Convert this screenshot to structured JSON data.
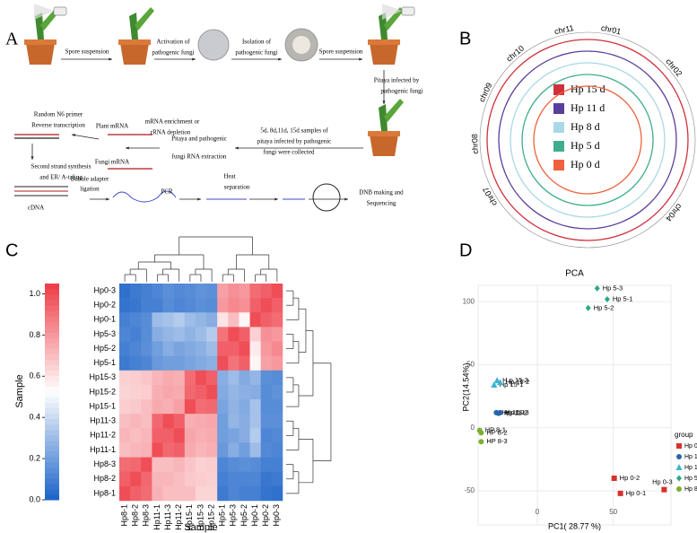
{
  "panel_labels": [
    "A",
    "B",
    "C",
    "D"
  ],
  "workflow": {
    "steps": [
      "Spore suspension",
      "Activation of",
      "pathogenic fungi",
      "Isolation of",
      "pathogenic fungi",
      "Spore suspension",
      "Pitaya infected by",
      "pathogenic fungi",
      "5d, 8d,11d, 15d samples of",
      "pitaya infected by pathogenic",
      "fungi were collected",
      "Pitaya and pathogenic",
      "fungi RNA extraction",
      "mRNA enrichment or",
      "rRNA depletion",
      "Plant mRNA",
      "Fungi mRNA",
      "Random N6 primer",
      "Reverse transcription",
      "Second strand synthesis",
      "and ER/ A-taling",
      "Bubble adapter",
      "ligation",
      "cDNA",
      "PCR",
      "Heat",
      "separation",
      "DNB making and",
      "Sequencing"
    ]
  },
  "circos": {
    "chromosomes": [
      "chr07",
      "chr08",
      "chr09",
      "chr10",
      "chr11",
      "chr01",
      "chr02",
      "chr03",
      "chr04"
    ],
    "tracks": [
      {
        "name": "Hp 15 d",
        "color": "#d0303c"
      },
      {
        "name": "Hp 11 d",
        "color": "#5a3e9c"
      },
      {
        "name": "Hp 8 d",
        "color": "#a9d8e6"
      },
      {
        "name": "Hp 5 d",
        "color": "#3fae8e"
      },
      {
        "name": "Hp 0 d",
        "color": "#f0603c"
      }
    ]
  },
  "chart_data": [
    {
      "type": "heatmap",
      "xlabel": "Sample",
      "ylabel": "Sample",
      "rows": [
        "Hp0-3",
        "Hp0-2",
        "Hp0-1",
        "Hp5-3",
        "Hp5-2",
        "Hp5-1",
        "Hp15-3",
        "Hp15-2",
        "Hp15-1",
        "Hp11-3",
        "Hp11-2",
        "Hp11-1",
        "Hp8-3",
        "Hp8-2",
        "Hp8-1"
      ],
      "columns": [
        "Hp8-1",
        "Hp8-2",
        "Hp8-3",
        "Hp11-1",
        "Hp11-3",
        "Hp11-2",
        "Hp15-1",
        "Hp15-3",
        "Hp15-2",
        "Hp5-1",
        "Hp5-3",
        "Hp5-2",
        "Hp0-1",
        "Hp0-2",
        "Hp0-3"
      ],
      "values": [
        [
          0.05,
          0.08,
          0.1,
          0.12,
          0.15,
          0.13,
          0.14,
          0.16,
          0.15,
          0.78,
          0.82,
          0.8,
          0.92,
          0.95,
          1.0
        ],
        [
          0.06,
          0.07,
          0.1,
          0.1,
          0.14,
          0.12,
          0.13,
          0.15,
          0.14,
          0.8,
          0.84,
          0.82,
          0.95,
          1.0,
          0.95
        ],
        [
          0.1,
          0.12,
          0.14,
          0.3,
          0.32,
          0.35,
          0.3,
          0.28,
          0.25,
          0.6,
          0.7,
          0.55,
          1.0,
          0.95,
          0.92
        ],
        [
          0.12,
          0.1,
          0.14,
          0.25,
          0.28,
          0.3,
          0.27,
          0.3,
          0.35,
          0.9,
          1.0,
          0.95,
          0.65,
          0.82,
          0.8
        ],
        [
          0.1,
          0.12,
          0.15,
          0.2,
          0.25,
          0.22,
          0.24,
          0.26,
          0.3,
          0.95,
          0.95,
          1.0,
          0.58,
          0.8,
          0.84
        ],
        [
          0.08,
          0.1,
          0.12,
          0.18,
          0.2,
          0.2,
          0.22,
          0.24,
          0.26,
          1.0,
          0.9,
          0.95,
          0.55,
          0.78,
          0.8
        ],
        [
          0.65,
          0.66,
          0.68,
          0.72,
          0.75,
          0.74,
          0.92,
          1.0,
          0.95,
          0.25,
          0.3,
          0.24,
          0.28,
          0.15,
          0.14
        ],
        [
          0.64,
          0.65,
          0.66,
          0.74,
          0.76,
          0.75,
          0.93,
          0.95,
          1.0,
          0.24,
          0.28,
          0.26,
          0.25,
          0.14,
          0.16
        ],
        [
          0.66,
          0.67,
          0.7,
          0.75,
          0.74,
          0.78,
          1.0,
          0.92,
          0.93,
          0.22,
          0.27,
          0.24,
          0.32,
          0.14,
          0.14
        ],
        [
          0.7,
          0.72,
          0.7,
          0.93,
          1.0,
          0.95,
          0.74,
          0.75,
          0.76,
          0.2,
          0.28,
          0.25,
          0.32,
          0.15,
          0.15
        ],
        [
          0.72,
          0.7,
          0.72,
          0.95,
          0.95,
          1.0,
          0.76,
          0.74,
          0.75,
          0.2,
          0.22,
          0.25,
          0.35,
          0.12,
          0.13
        ],
        [
          0.7,
          0.72,
          0.73,
          1.0,
          0.93,
          0.95,
          0.75,
          0.72,
          0.74,
          0.18,
          0.25,
          0.2,
          0.3,
          0.13,
          0.12
        ],
        [
          0.92,
          0.93,
          1.0,
          0.7,
          0.7,
          0.72,
          0.68,
          0.65,
          0.66,
          0.12,
          0.14,
          0.15,
          0.14,
          0.1,
          0.1
        ],
        [
          0.95,
          1.0,
          0.93,
          0.72,
          0.72,
          0.7,
          0.67,
          0.66,
          0.65,
          0.1,
          0.12,
          0.12,
          0.12,
          0.07,
          0.08
        ],
        [
          1.0,
          0.95,
          0.92,
          0.73,
          0.7,
          0.7,
          0.7,
          0.64,
          0.64,
          0.08,
          0.12,
          0.1,
          0.1,
          0.06,
          0.05
        ]
      ],
      "clim": [
        0,
        1.05
      ],
      "cticks": [
        {
          "value": 0,
          "label": "0.0"
        },
        0.2,
        0.4,
        0.6,
        0.8,
        {
          "value": 1,
          "label": "1.0"
        }
      ],
      "colors": [
        "#1a62c8",
        "#ffffff",
        "#ee3b45"
      ]
    },
    {
      "type": "scatter",
      "title": "PCA",
      "xlabel": "PC1( 28.77 %)",
      "ylabel": "PC2(14.54%)",
      "xlim": [
        -39,
        88
      ],
      "ylim": [
        -77,
        113
      ],
      "xticks": [
        0,
        50
      ],
      "yticks": [
        -50,
        0,
        50,
        100
      ],
      "grid": true,
      "legend_title": "group",
      "series": [
        {
          "name": "Hp 0",
          "color": "#d7312b",
          "marker": "square",
          "x": [
            50.6,
            54.7,
            83.5
          ],
          "y": [
            -40,
            -52,
            -49
          ],
          "labels": [
            "Hp 0-2",
            "Hp 0-1",
            "Hp 0-3"
          ]
        },
        {
          "name": "Hp 11",
          "color": "#2764a8",
          "marker": "circle",
          "x": [
            -27,
            -25.5,
            -24.5
          ],
          "y": [
            12,
            11.5,
            12
          ],
          "labels": [
            "Hp 11-1",
            "Hp 11-2",
            "Hp 11-3"
          ]
        },
        {
          "name": "Hp 15",
          "color": "#3cb3d0",
          "marker": "triangle",
          "x": [
            -28.5,
            -24.5,
            -26.5
          ],
          "y": [
            34,
            36,
            37.5
          ],
          "labels": [
            "Hp 15-1",
            "Hp 15-2",
            "H p 15-3"
          ]
        },
        {
          "name": "Hp 5",
          "color": "#2aa88a",
          "marker": "diamond",
          "x": [
            46,
            33.5,
            39.4
          ],
          "y": [
            102,
            95,
            110.6
          ],
          "labels": [
            "Hp 5-1",
            "Hp 5-2",
            "Hp 5-3"
          ]
        },
        {
          "name": "Hp 8",
          "color": "#7ab032",
          "marker": "circle",
          "x": [
            -38,
            -37,
            -37
          ],
          "y": [
            -2,
            -4,
            -11
          ],
          "labels": [
            "HP 8-1",
            "HP 8-2",
            "HP 8-3"
          ]
        }
      ]
    }
  ]
}
